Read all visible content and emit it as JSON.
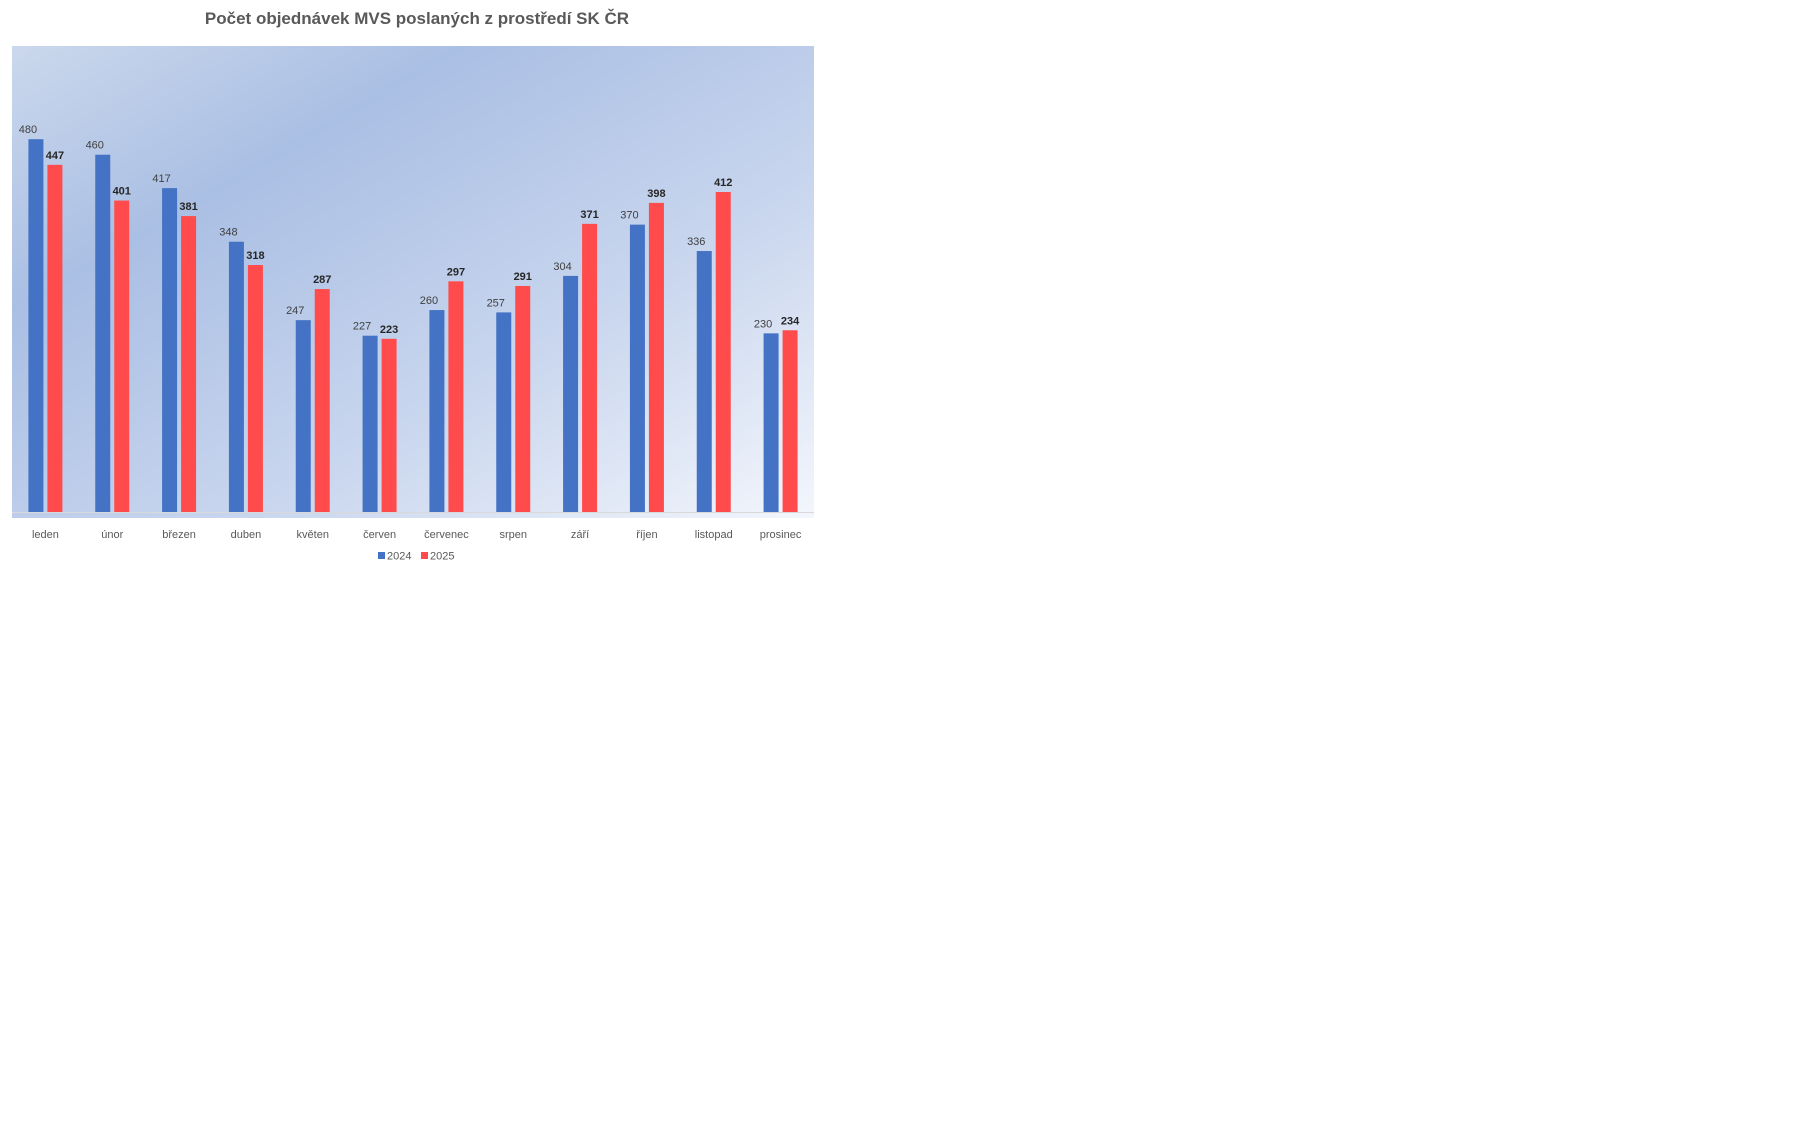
{
  "chart_data": {
    "type": "bar",
    "title": "Počet objednávek MVS poslaných z prostředí SK ČR",
    "categories": [
      "leden",
      "únor",
      "březen",
      "duben",
      "květen",
      "červen",
      "červenec",
      "srpen",
      "září",
      "říjen",
      "listopad",
      "prosinec"
    ],
    "series": [
      {
        "name": "2024",
        "color": "#4472c4",
        "values": [
          480,
          460,
          417,
          348,
          247,
          227,
          260,
          257,
          304,
          370,
          336,
          230
        ]
      },
      {
        "name": "2025",
        "color": "#ff4b4b",
        "values": [
          447,
          401,
          381,
          318,
          287,
          223,
          297,
          291,
          371,
          398,
          412,
          234
        ]
      }
    ],
    "xlabel": "",
    "ylabel": "",
    "ylim": [
      0,
      600
    ],
    "grid": false,
    "legend": "bottom",
    "data_labels": true
  }
}
